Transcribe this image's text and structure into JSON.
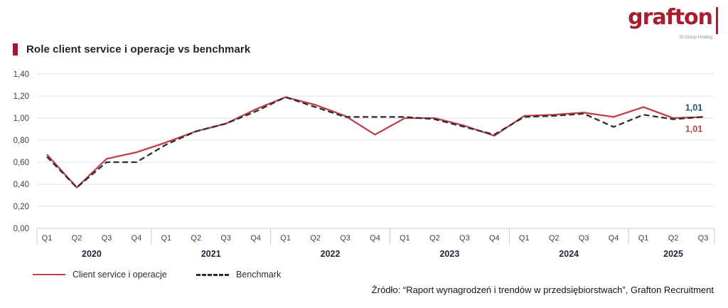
{
  "logo": {
    "brand": "grafton",
    "tagline": "Gi Group Holding"
  },
  "header": {
    "title": "Role client service i operacje vs benchmark"
  },
  "legend": [
    {
      "label": "Client service i operacje",
      "style": "solid",
      "color": "#c0414d"
    },
    {
      "label": "Benchmark",
      "style": "dashed",
      "color": "#2e2e2e"
    }
  ],
  "source": "Źródło: “Raport wynagrodzeń i trendów w przedsiębiorstwach”, Grafton Recruitment",
  "colors": {
    "accent_red": "#9e1b32",
    "logo_red": "#a61e30",
    "line_red": "#c0414d",
    "line_black": "#2e2e2e",
    "end_label_navy": "#1f4e79",
    "grid": "#e2e2e2",
    "axis": "#c9c9c9",
    "tick_text": "#3c3c4e",
    "year_text": "#27273a"
  },
  "chart_data": {
    "type": "line",
    "title": "Role client service i operacje vs benchmark",
    "xlabel": "",
    "ylabel": "",
    "ylim": [
      0.0,
      1.4
    ],
    "ytick_step": 0.2,
    "ytick_labels": [
      "0,00",
      "0,20",
      "0,40",
      "0,60",
      "0,80",
      "1,00",
      "1,20",
      "1,40"
    ],
    "grid": true,
    "legend_position": "bottom-left",
    "years": [
      {
        "label": "2020",
        "quarters": [
          "Q1",
          "Q2",
          "Q3",
          "Q4"
        ]
      },
      {
        "label": "2021",
        "quarters": [
          "Q1",
          "Q2",
          "Q3",
          "Q4"
        ]
      },
      {
        "label": "2022",
        "quarters": [
          "Q1",
          "Q2",
          "Q3",
          "Q4"
        ]
      },
      {
        "label": "2023",
        "quarters": [
          "Q1",
          "Q2",
          "Q3",
          "Q4"
        ]
      },
      {
        "label": "2024",
        "quarters": [
          "Q1",
          "Q2",
          "Q3",
          "Q4"
        ]
      },
      {
        "label": "2025",
        "quarters": [
          "Q1",
          "Q2",
          "Q3"
        ]
      }
    ],
    "series": [
      {
        "name": "Client service i operacje",
        "style": "solid",
        "color": "#c0414d",
        "values": [
          0.67,
          0.37,
          0.63,
          0.69,
          0.78,
          0.88,
          0.95,
          1.08,
          1.19,
          1.12,
          1.02,
          0.85,
          1.0,
          1.0,
          0.93,
          0.84,
          1.02,
          1.03,
          1.05,
          1.01,
          1.1,
          1.0,
          1.01
        ]
      },
      {
        "name": "Benchmark",
        "style": "dashed",
        "color": "#2e2e2e",
        "values": [
          0.65,
          0.37,
          0.6,
          0.6,
          0.76,
          0.88,
          0.95,
          1.06,
          1.19,
          1.1,
          1.01,
          1.01,
          1.01,
          0.99,
          0.92,
          0.85,
          1.01,
          1.02,
          1.04,
          0.92,
          1.03,
          0.99,
          1.01
        ]
      }
    ],
    "end_labels": [
      {
        "text": "1,01",
        "color": "#1f4e79",
        "series": "Benchmark",
        "position": "above"
      },
      {
        "text": "1,01",
        "color": "#c0414d",
        "series": "Client service i operacje",
        "position": "below"
      }
    ]
  }
}
